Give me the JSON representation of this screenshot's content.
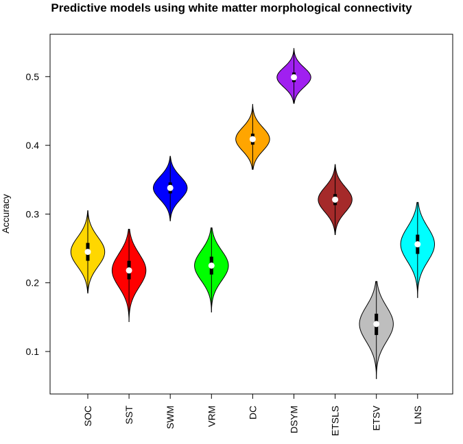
{
  "chart_data": {
    "type": "violin",
    "title": "Predictive models using white matter morphological connectivity",
    "xlabel": "",
    "ylabel": "Accuracy",
    "ylim": [
      0.05,
      0.55
    ],
    "yticks": [
      "0.1",
      "0.2",
      "0.3",
      "0.4",
      "0.5"
    ],
    "grid": false,
    "categories": [
      "SOC",
      "SST",
      "SWM",
      "VRM",
      "DC",
      "DSYM",
      "ETSLS",
      "ETSV",
      "LNS"
    ],
    "series": [
      {
        "name": "SOC",
        "color": "#FFD700",
        "min": 0.185,
        "q1": 0.232,
        "median": 0.245,
        "q3": 0.258,
        "max": 0.305
      },
      {
        "name": "SST",
        "color": "#FF0000",
        "min": 0.143,
        "q1": 0.205,
        "median": 0.218,
        "q3": 0.232,
        "max": 0.278
      },
      {
        "name": "SWM",
        "color": "#0000FF",
        "min": 0.29,
        "q1": 0.33,
        "median": 0.338,
        "q3": 0.346,
        "max": 0.384
      },
      {
        "name": "VRM",
        "color": "#00FF00",
        "min": 0.157,
        "q1": 0.212,
        "median": 0.225,
        "q3": 0.238,
        "max": 0.28
      },
      {
        "name": "DC",
        "color": "#FFA500",
        "min": 0.365,
        "q1": 0.401,
        "median": 0.409,
        "q3": 0.417,
        "max": 0.46
      },
      {
        "name": "DSYM",
        "color": "#A020F0",
        "min": 0.461,
        "q1": 0.492,
        "median": 0.499,
        "q3": 0.506,
        "max": 0.541
      },
      {
        "name": "ETSLS",
        "color": "#A52A2A",
        "min": 0.27,
        "q1": 0.313,
        "median": 0.321,
        "q3": 0.329,
        "max": 0.372
      },
      {
        "name": "ETSV",
        "color": "#BEBEBE",
        "min": 0.06,
        "q1": 0.124,
        "median": 0.14,
        "q3": 0.155,
        "max": 0.202
      },
      {
        "name": "LNS",
        "color": "#00FFFF",
        "min": 0.178,
        "q1": 0.242,
        "median": 0.256,
        "q3": 0.27,
        "max": 0.317
      }
    ]
  }
}
